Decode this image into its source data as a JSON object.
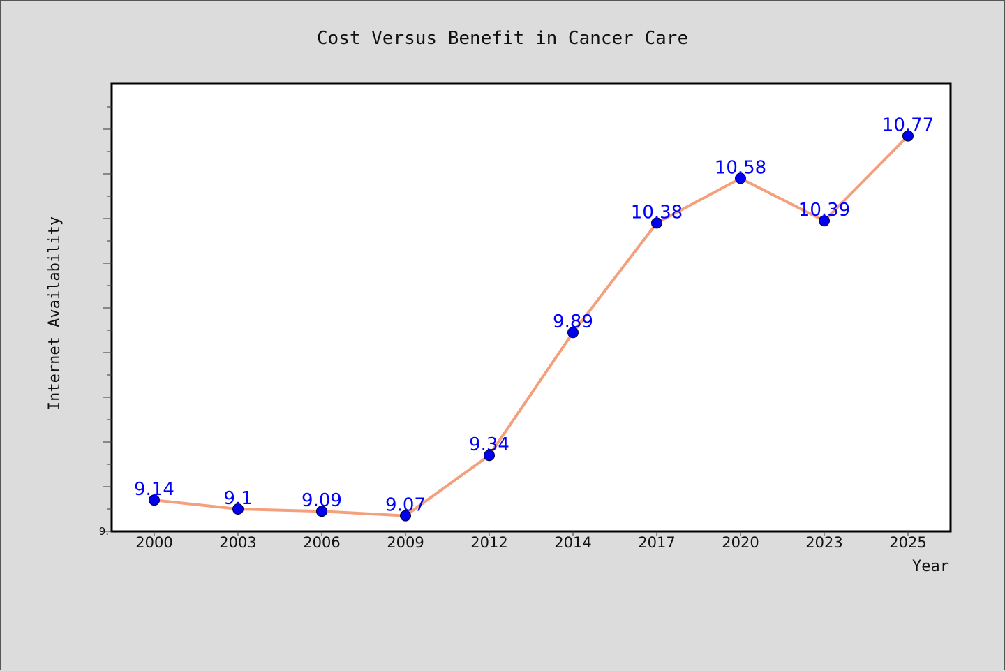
{
  "chart_data": {
    "type": "line",
    "title": "Cost Versus Benefit in Cancer Care",
    "xlabel": "Year",
    "ylabel": "Internet Availability",
    "categories": [
      "2000",
      "2003",
      "2006",
      "2009",
      "2012",
      "2014",
      "2017",
      "2020",
      "2023",
      "2025"
    ],
    "series": [
      {
        "values": [
          9.14,
          9.1,
          9.09,
          9.07,
          9.34,
          9.89,
          10.38,
          10.58,
          10.39,
          10.77
        ],
        "labels": [
          "9.14",
          "9.1",
          "9.09",
          "9.07",
          "9.34",
          "9.89",
          "10.38",
          "10.58",
          "10.39",
          "10.77"
        ]
      }
    ],
    "ylim": [
      9.0,
      11.0
    ],
    "y_tick_labels": [
      "9."
    ],
    "grid": false,
    "colors": {
      "line": "#f4a07c",
      "marker": "#0000ee",
      "data_label": "#0000ff",
      "plot_background": "#ffffff",
      "figure_background": "#dcdcdc"
    }
  }
}
